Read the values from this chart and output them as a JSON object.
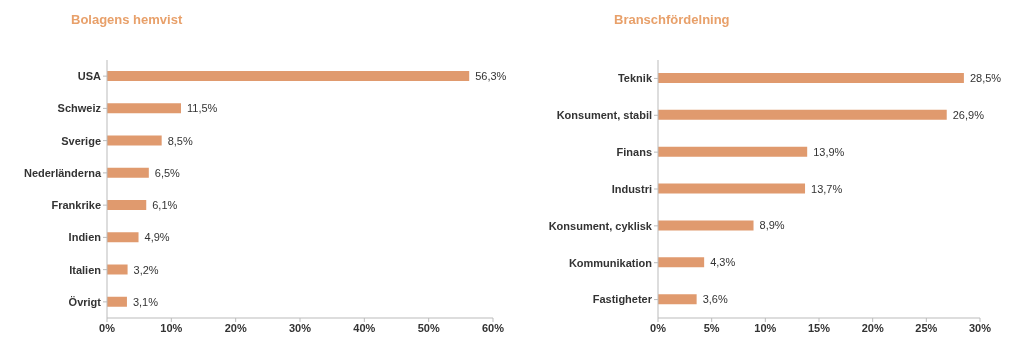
{
  "chart_data": [
    {
      "type": "bar",
      "orientation": "horizontal",
      "title": "Bolagens hemvist",
      "categories": [
        "USA",
        "Schweiz",
        "Sverige",
        "Nederländerna",
        "Frankrike",
        "Indien",
        "Italien",
        "Övrigt"
      ],
      "values": [
        56.3,
        11.5,
        8.5,
        6.5,
        6.1,
        4.9,
        3.2,
        3.1
      ],
      "value_labels": [
        "56,3%",
        "11,5%",
        "8,5%",
        "6,5%",
        "6,1%",
        "4,9%",
        "3,2%",
        "3,1%"
      ],
      "color": "#e09a6e",
      "xlim": [
        0,
        60
      ],
      "xticks": [
        {
          "value": 0,
          "label": "0%"
        },
        {
          "value": 10,
          "label": "10%"
        },
        {
          "value": 20,
          "label": "20%"
        },
        {
          "value": 30,
          "label": "30%"
        },
        {
          "value": 40,
          "label": "40%"
        },
        {
          "value": 50,
          "label": "50%"
        },
        {
          "value": 60,
          "label": "60%"
        }
      ],
      "grid": false,
      "legend": false
    },
    {
      "type": "bar",
      "orientation": "horizontal",
      "title": "Branschfördelning",
      "categories": [
        "Teknik",
        "Konsument, stabil",
        "Finans",
        "Industri",
        "Konsument, cyklisk",
        "Kommunikation",
        "Fastigheter"
      ],
      "values": [
        28.5,
        26.9,
        13.9,
        13.7,
        8.9,
        4.3,
        3.6
      ],
      "value_labels": [
        "28,5%",
        "26,9%",
        "13,9%",
        "13,7%",
        "8,9%",
        "4,3%",
        "3,6%"
      ],
      "color": "#e09a6e",
      "xlim": [
        0,
        30
      ],
      "xticks": [
        {
          "value": 0,
          "label": "0%"
        },
        {
          "value": 5,
          "label": "5%"
        },
        {
          "value": 10,
          "label": "10%"
        },
        {
          "value": 15,
          "label": "15%"
        },
        {
          "value": 20,
          "label": "20%"
        },
        {
          "value": 25,
          "label": "25%"
        },
        {
          "value": 30,
          "label": "30%"
        }
      ],
      "grid": false,
      "legend": false
    }
  ]
}
